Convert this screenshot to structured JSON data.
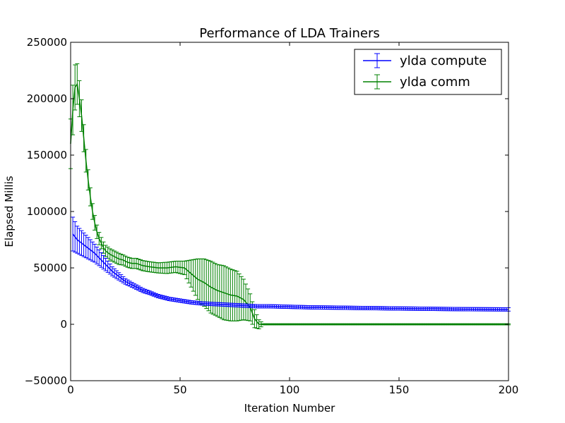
{
  "chart_data": {
    "type": "line",
    "title": "Performance of LDA Trainers",
    "xlabel": "Iteration Number",
    "ylabel": "Elapsed Millis",
    "xlim": [
      0,
      200
    ],
    "ylim": [
      -50000,
      250000
    ],
    "xticks": [
      "0",
      "50",
      "100",
      "150",
      "200"
    ],
    "yticks": [
      "−50000",
      "0",
      "50000",
      "100000",
      "150000",
      "200000",
      "250000"
    ],
    "grid": false,
    "legend_position": "top-right",
    "series": [
      {
        "name": "ylda compute",
        "color": "#0000ff",
        "x": [
          1,
          3,
          5,
          7,
          9,
          11,
          13,
          15,
          17,
          19,
          21,
          23,
          25,
          27,
          30,
          33,
          36,
          40,
          45,
          50,
          55,
          60,
          65,
          70,
          75,
          80,
          85,
          90,
          100,
          110,
          120,
          130,
          140,
          150,
          160,
          170,
          180,
          190,
          200
        ],
        "y": [
          80000,
          75000,
          72000,
          69000,
          66000,
          63000,
          59000,
          55000,
          51000,
          47000,
          44000,
          41000,
          38000,
          36000,
          33000,
          30000,
          28000,
          25000,
          22500,
          21000,
          19500,
          18500,
          18000,
          17500,
          17000,
          16500,
          16000,
          16000,
          15500,
          15000,
          14800,
          14500,
          14300,
          14000,
          13800,
          13600,
          13400,
          13300,
          13200
        ],
        "err": [
          15000,
          12000,
          11000,
          10000,
          9000,
          8000,
          7000,
          6000,
          5000,
          4000,
          3500,
          3000,
          2500,
          2200,
          2000,
          1800,
          1600,
          1500,
          1500,
          1500,
          1500,
          1500,
          1500,
          1500,
          1500,
          1500,
          1500,
          1500,
          1500,
          1500,
          1500,
          1500,
          1500,
          1500,
          1500,
          1500,
          1500,
          1500,
          1500
        ]
      },
      {
        "name": "ylda comm",
        "color": "#008000",
        "x": [
          0,
          1,
          2,
          3,
          4,
          5,
          6,
          7,
          8,
          9,
          10,
          11,
          12,
          13,
          14,
          15,
          16,
          18,
          20,
          22,
          24,
          26,
          28,
          30,
          33,
          36,
          40,
          44,
          48,
          52,
          55,
          58,
          61,
          64,
          67,
          70,
          73,
          76,
          79,
          82,
          84,
          86,
          88,
          100,
          120,
          140,
          160,
          180,
          200
        ],
        "y": [
          160000,
          190000,
          210000,
          213000,
          200000,
          185000,
          165000,
          145000,
          128000,
          113000,
          100000,
          90000,
          82000,
          76000,
          72000,
          68000,
          65000,
          62000,
          60000,
          58000,
          57000,
          55000,
          54000,
          54000,
          52000,
          51000,
          50000,
          50000,
          51000,
          50000,
          45000,
          40000,
          37000,
          33000,
          30000,
          28000,
          26000,
          25000,
          22000,
          15000,
          5000,
          0,
          0,
          0,
          0,
          0,
          0,
          0,
          0
        ],
        "err": [
          22000,
          22000,
          20000,
          18000,
          16000,
          14000,
          12000,
          10000,
          9000,
          8000,
          7000,
          6500,
          6000,
          5500,
          5000,
          5000,
          5000,
          5000,
          5000,
          5000,
          4500,
          4500,
          4500,
          4500,
          4500,
          4500,
          4500,
          5000,
          5000,
          6000,
          12000,
          18000,
          21000,
          23000,
          23000,
          24000,
          23000,
          22000,
          18000,
          12000,
          8000,
          4000,
          500,
          500,
          500,
          500,
          500,
          500,
          500
        ]
      }
    ]
  }
}
